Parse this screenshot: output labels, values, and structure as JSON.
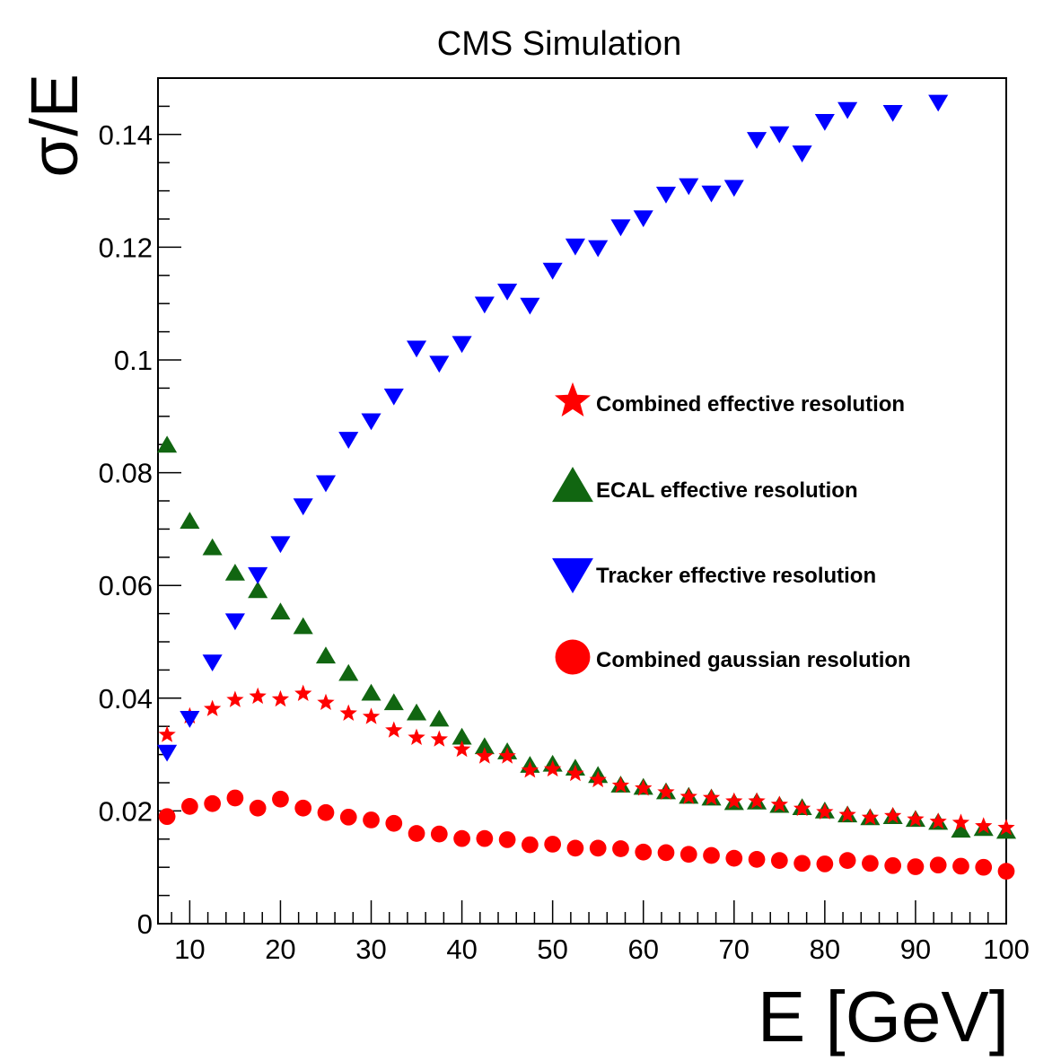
{
  "chart_data": {
    "type": "scatter",
    "title": "CMS Simulation",
    "xlabel": "E [GeV]",
    "ylabel": "σ/E",
    "xlim": [
      6.5,
      100
    ],
    "ylim": [
      0,
      0.15
    ],
    "x_ticks": [
      "10",
      "20",
      "30",
      "40",
      "50",
      "60",
      "70",
      "80",
      "90",
      "100"
    ],
    "y_ticks": [
      "0",
      "0.02",
      "0.04",
      "0.06",
      "0.08",
      "0.1",
      "0.12",
      "0.14"
    ],
    "grid": false,
    "legend_position": "center-right",
    "series": [
      {
        "name": "Combined effective resolution",
        "marker": "star",
        "color": "#ff0000",
        "x": [
          7.5,
          10,
          12.5,
          15,
          17.5,
          20,
          22.5,
          25,
          27.5,
          30,
          32.5,
          35,
          37.5,
          40,
          42.5,
          45,
          47.5,
          50,
          52.5,
          55,
          57.5,
          60,
          62.5,
          65,
          67.5,
          70,
          72.5,
          75,
          77.5,
          80,
          82.5,
          85,
          87.5,
          90,
          92.5,
          95,
          97.5,
          100
        ],
        "y": [
          0.0335,
          0.0368,
          0.0381,
          0.0397,
          0.0403,
          0.0398,
          0.0408,
          0.0392,
          0.0373,
          0.0367,
          0.0343,
          0.033,
          0.0327,
          0.0309,
          0.0297,
          0.0297,
          0.0272,
          0.0274,
          0.0266,
          0.0255,
          0.0245,
          0.024,
          0.0233,
          0.0225,
          0.0223,
          0.0217,
          0.0217,
          0.0211,
          0.0204,
          0.0198,
          0.0193,
          0.0188,
          0.0191,
          0.0185,
          0.0181,
          0.0179,
          0.0173,
          0.017
        ]
      },
      {
        "name": "ECAL effective resolution",
        "marker": "triangle-up",
        "color": "#116611",
        "x": [
          7.5,
          10,
          12.5,
          15,
          17.5,
          20,
          22.5,
          25,
          27.5,
          30,
          32.5,
          35,
          37.5,
          40,
          42.5,
          45,
          47.5,
          50,
          52.5,
          55,
          57.5,
          60,
          62.5,
          65,
          67.5,
          70,
          72.5,
          75,
          77.5,
          80,
          82.5,
          85,
          87.5,
          90,
          92.5,
          95,
          97.5,
          100
        ],
        "y": [
          0.0848,
          0.0713,
          0.0666,
          0.0621,
          0.059,
          0.0552,
          0.0526,
          0.0474,
          0.0443,
          0.0408,
          0.0391,
          0.0373,
          0.0362,
          0.033,
          0.0313,
          0.0304,
          0.028,
          0.0282,
          0.0275,
          0.0262,
          0.0245,
          0.0241,
          0.0233,
          0.0225,
          0.0222,
          0.0214,
          0.0215,
          0.0209,
          0.0205,
          0.0199,
          0.0192,
          0.0187,
          0.0189,
          0.0184,
          0.0179,
          0.0165,
          0.0168,
          0.0163
        ]
      },
      {
        "name": "Tracker effective resolution",
        "marker": "triangle-down",
        "color": "#0000ff",
        "x": [
          7.5,
          10,
          12.5,
          15,
          17.5,
          20,
          22.5,
          25,
          27.5,
          30,
          32.5,
          35,
          37.5,
          40,
          42.5,
          45,
          47.5,
          50,
          52.5,
          55,
          57.5,
          60,
          62.5,
          65,
          67.5,
          70,
          72.5,
          75,
          77.5,
          80,
          82.5,
          87.5,
          92.5
        ],
        "y": [
          0.0305,
          0.0365,
          0.0465,
          0.0538,
          0.062,
          0.0675,
          0.0742,
          0.0783,
          0.086,
          0.0893,
          0.0937,
          0.1022,
          0.0995,
          0.103,
          0.11,
          0.1123,
          0.1098,
          0.116,
          0.1203,
          0.12,
          0.1237,
          0.1253,
          0.1295,
          0.131,
          0.1297,
          0.1307,
          0.1392,
          0.1402,
          0.1368,
          0.1424,
          0.1445,
          0.144,
          0.1458
        ]
      },
      {
        "name": "Combined gaussian resolution",
        "marker": "circle",
        "color": "#ff0000",
        "x": [
          7.5,
          10,
          12.5,
          15,
          17.5,
          20,
          22.5,
          25,
          27.5,
          30,
          32.5,
          35,
          37.5,
          40,
          42.5,
          45,
          47.5,
          50,
          52.5,
          55,
          57.5,
          60,
          62.5,
          65,
          67.5,
          70,
          72.5,
          75,
          77.5,
          80,
          82.5,
          85,
          87.5,
          90,
          92.5,
          95,
          97.5,
          100
        ],
        "y": [
          0.019,
          0.0208,
          0.0213,
          0.0223,
          0.0205,
          0.0221,
          0.0205,
          0.0197,
          0.0189,
          0.0184,
          0.0178,
          0.016,
          0.0159,
          0.0151,
          0.0151,
          0.0149,
          0.014,
          0.0141,
          0.0134,
          0.0134,
          0.0133,
          0.0127,
          0.0126,
          0.0123,
          0.0121,
          0.0116,
          0.0114,
          0.0112,
          0.0107,
          0.0106,
          0.0112,
          0.0107,
          0.0103,
          0.0101,
          0.0104,
          0.0102,
          0.01,
          0.0093
        ]
      }
    ]
  }
}
